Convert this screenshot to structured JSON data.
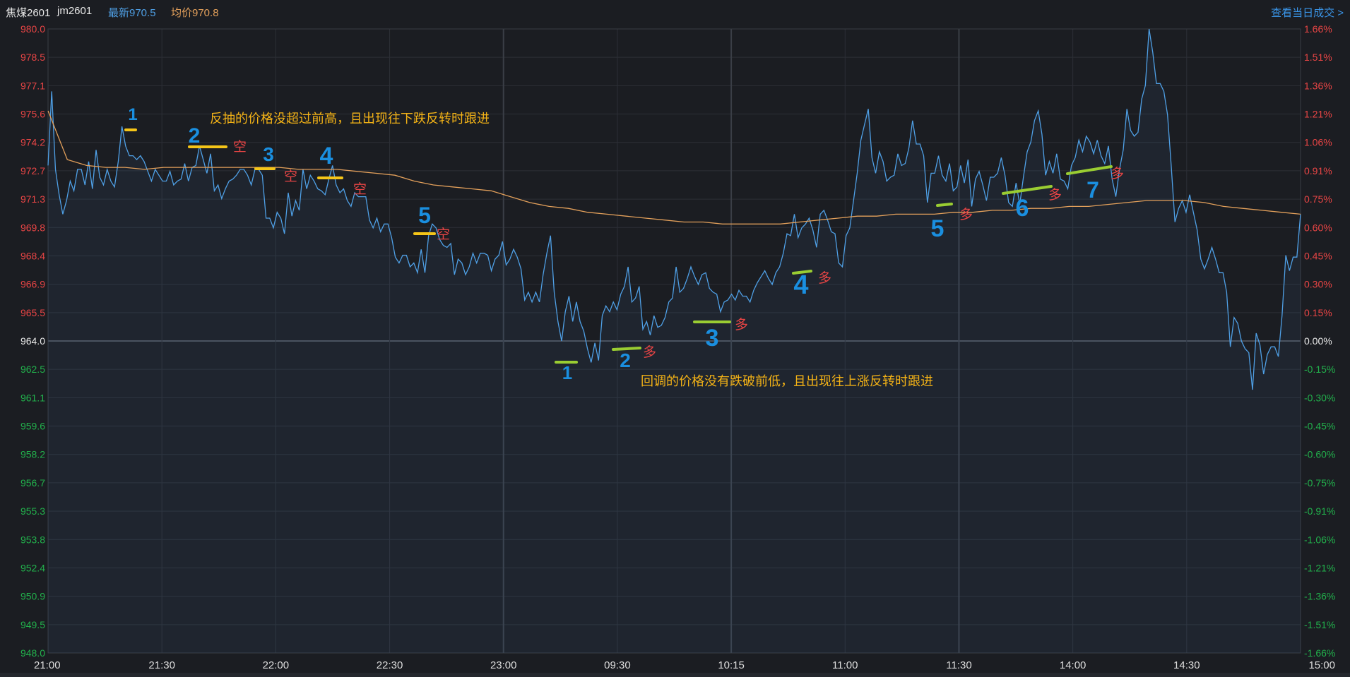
{
  "header": {
    "symbol": "焦煤2601",
    "code": "jm2601",
    "latest_label": "最新970.5",
    "avg_label": "均价970.8",
    "trades_link": "查看当日成交 >"
  },
  "colors": {
    "background": "#1b1d22",
    "grid": "#2c2f36",
    "price_line": "#4fa0e6",
    "avg_line": "#e3a05b",
    "up": "#e84545",
    "down": "#22b14c",
    "zero": "#e8e8e8",
    "time_label": "#dcdcdc",
    "annotation_text": "#f3b216",
    "short_mark": "#f5c518",
    "long_mark": "#9acd32",
    "number_mark": "#1a8fe0",
    "link": "#3a95e8"
  },
  "chart_data": {
    "type": "line",
    "title": "",
    "xlabel": "",
    "ylabel": "",
    "ylim": [
      948.0,
      980.0
    ],
    "reference_price": 964.0,
    "y_ticks": [
      "980.0",
      "978.5",
      "977.1",
      "975.6",
      "974.2",
      "972.7",
      "971.3",
      "969.8",
      "968.4",
      "966.9",
      "965.5",
      "964.0",
      "962.5",
      "961.1",
      "959.6",
      "958.2",
      "956.7",
      "955.3",
      "953.8",
      "952.4",
      "950.9",
      "949.5",
      "948.0"
    ],
    "pct_ticks": [
      "1.66%",
      "1.51%",
      "1.36%",
      "1.21%",
      "1.06%",
      "0.91%",
      "0.75%",
      "0.60%",
      "0.45%",
      "0.30%",
      "0.15%",
      "0.00%",
      "-0.15%",
      "-0.30%",
      "-0.45%",
      "-0.60%",
      "-0.75%",
      "-0.91%",
      "-1.06%",
      "-1.21%",
      "-1.36%",
      "-1.51%",
      "-1.66%"
    ],
    "x_ticks": [
      "21:00",
      "21:30",
      "22:00",
      "22:30",
      "23:00",
      "09:30",
      "10:15",
      "11:00",
      "11:30",
      "14:00",
      "14:30",
      "15:00"
    ],
    "session_breaks": [
      "23:00",
      "10:15",
      "11:30"
    ],
    "series": [
      {
        "key": "price",
        "values": [
          973.0,
          976.8,
          972.8,
          971.5,
          970.5,
          971.2,
          972.2,
          971.7,
          972.8,
          972.8,
          972.0,
          973.2,
          971.8,
          973.8,
          972.4,
          972.0,
          972.8,
          972.2,
          971.9,
          973.2,
          975.0,
          974.0,
          973.5,
          973.5,
          973.3,
          973.5,
          973.2,
          972.7,
          972.2,
          972.8,
          972.5,
          972.2,
          972.2,
          972.7,
          972.0,
          972.2,
          972.3,
          973.1,
          972.2,
          972.9,
          973.0,
          974.0,
          973.3,
          972.6,
          973.6,
          971.7,
          972.0,
          971.3,
          971.8,
          972.2,
          972.3,
          972.5,
          972.8,
          972.8,
          972.5,
          972.0,
          972.8,
          972.8,
          972.5,
          970.3,
          970.3,
          969.8,
          970.6,
          970.3,
          969.5,
          971.6,
          970.4,
          971.2,
          970.7,
          972.8,
          971.8,
          972.5,
          972.2,
          971.8,
          971.7,
          971.5,
          972.3,
          973.0,
          972.0,
          971.6,
          971.8,
          971.2,
          970.9,
          971.6,
          971.4,
          971.4,
          971.4,
          970.2,
          969.8,
          970.3,
          969.6,
          970.0,
          970.0,
          969.3,
          968.3,
          968.0,
          968.4,
          968.4,
          967.8,
          968.0,
          967.5,
          968.7,
          967.5,
          969.4,
          970.0,
          969.8,
          969.2,
          968.9,
          968.8,
          969.0,
          967.4,
          968.2,
          968.0,
          967.4,
          967.8,
          968.5,
          968.0,
          968.5,
          968.5,
          968.4,
          967.6,
          968.2,
          968.4,
          969.1,
          967.9,
          968.2,
          968.7,
          968.3,
          967.7,
          966.1,
          966.5,
          966.0,
          966.5,
          966.0,
          967.4,
          968.5,
          969.4,
          966.5,
          965.0,
          964.0,
          965.5,
          966.3,
          965.0,
          966.0,
          965.0,
          964.5,
          963.6,
          962.9,
          963.9,
          963.0,
          965.3,
          965.8,
          965.5,
          966.0,
          965.6,
          966.4,
          966.8,
          967.8,
          966.0,
          966.2,
          966.8,
          964.6,
          965.0,
          964.3,
          965.3,
          964.7,
          964.8,
          965.2,
          966.0,
          966.2,
          967.8,
          966.5,
          966.7,
          967.2,
          967.8,
          967.3,
          966.9,
          967.4,
          967.5,
          966.7,
          966.5,
          966.4,
          965.5,
          966.0,
          966.1,
          966.4,
          966.1,
          966.6,
          966.3,
          966.3,
          966.0,
          966.6,
          967.0,
          967.3,
          967.6,
          967.2,
          966.9,
          967.5,
          967.8,
          968.5,
          969.5,
          969.4,
          970.5,
          969.3,
          969.8,
          970.0,
          970.3,
          969.7,
          968.8,
          970.5,
          970.7,
          970.2,
          969.6,
          969.5,
          968.0,
          967.8,
          969.4,
          969.8,
          971.2,
          972.6,
          974.3,
          975.1,
          975.9,
          973.4,
          972.6,
          973.7,
          973.2,
          972.2,
          972.4,
          972.5,
          973.6,
          973.0,
          973.1,
          973.9,
          975.3,
          974.1,
          974.1,
          973.5,
          971.1,
          972.6,
          972.6,
          973.5,
          972.5,
          972.2,
          973.1,
          971.7,
          971.9,
          973.0,
          972.1,
          973.3,
          970.9,
          972.3,
          972.7,
          972.0,
          971.2,
          972.4,
          972.4,
          972.6,
          973.4,
          972.5,
          971.1,
          970.9,
          972.1,
          971.0,
          972.4,
          973.7,
          974.2,
          975.3,
          975.8,
          974.6,
          972.5,
          973.2,
          972.6,
          973.6,
          972.3,
          972.2,
          971.8,
          973.0,
          973.4,
          974.3,
          973.7,
          974.5,
          974.2,
          973.6,
          974.3,
          973.5,
          973.1,
          974.0,
          972.3,
          971.4,
          972.8,
          973.8,
          975.9,
          974.8,
          974.5,
          974.7,
          976.4,
          977.1,
          980.0,
          978.8,
          977.2,
          977.2,
          976.8,
          975.6,
          973.0,
          970.1,
          970.8,
          971.2,
          970.6,
          971.5,
          970.6,
          969.7,
          968.2,
          967.7,
          968.2,
          968.8,
          968.2,
          967.5,
          967.5,
          966.5,
          963.7,
          965.2,
          964.9,
          964.0,
          963.6,
          963.4,
          961.5,
          964.4,
          963.8,
          962.3,
          963.3,
          963.7,
          963.7,
          963.2,
          965.3,
          968.4,
          967.6,
          968.3,
          968.3,
          970.5
        ]
      },
      {
        "key": "average",
        "values": [
          975.8,
          973.3,
          973.0,
          972.9,
          972.9,
          972.8,
          972.9,
          972.9,
          972.9,
          972.9,
          972.9,
          972.9,
          972.9,
          972.8,
          972.8,
          972.8,
          972.7,
          972.6,
          972.5,
          972.2,
          972.0,
          971.9,
          971.8,
          971.7,
          971.4,
          971.1,
          970.9,
          970.8,
          970.6,
          970.5,
          970.4,
          970.3,
          970.2,
          970.1,
          970.1,
          970.0,
          970.0,
          970.0,
          970.0,
          970.1,
          970.2,
          970.3,
          970.4,
          970.4,
          970.5,
          970.5,
          970.5,
          970.6,
          970.6,
          970.7,
          970.7,
          970.8,
          970.8,
          970.9,
          970.9,
          971.0,
          971.1,
          971.2,
          971.2,
          971.2,
          971.1,
          970.9,
          970.8,
          970.7,
          970.6,
          970.5
        ]
      }
    ],
    "annotations": {
      "short_note": "反抽的价格没超过前高，且出现往下跌反转时跟进",
      "long_note": "回调的价格没有跌破前低，且出现往上涨反转时跟进",
      "short_label": "空",
      "long_label": "多",
      "short_entries": [
        "1",
        "2",
        "3",
        "4",
        "5"
      ],
      "long_entries": [
        "1",
        "2",
        "3",
        "4",
        "5",
        "6",
        "7"
      ]
    }
  }
}
